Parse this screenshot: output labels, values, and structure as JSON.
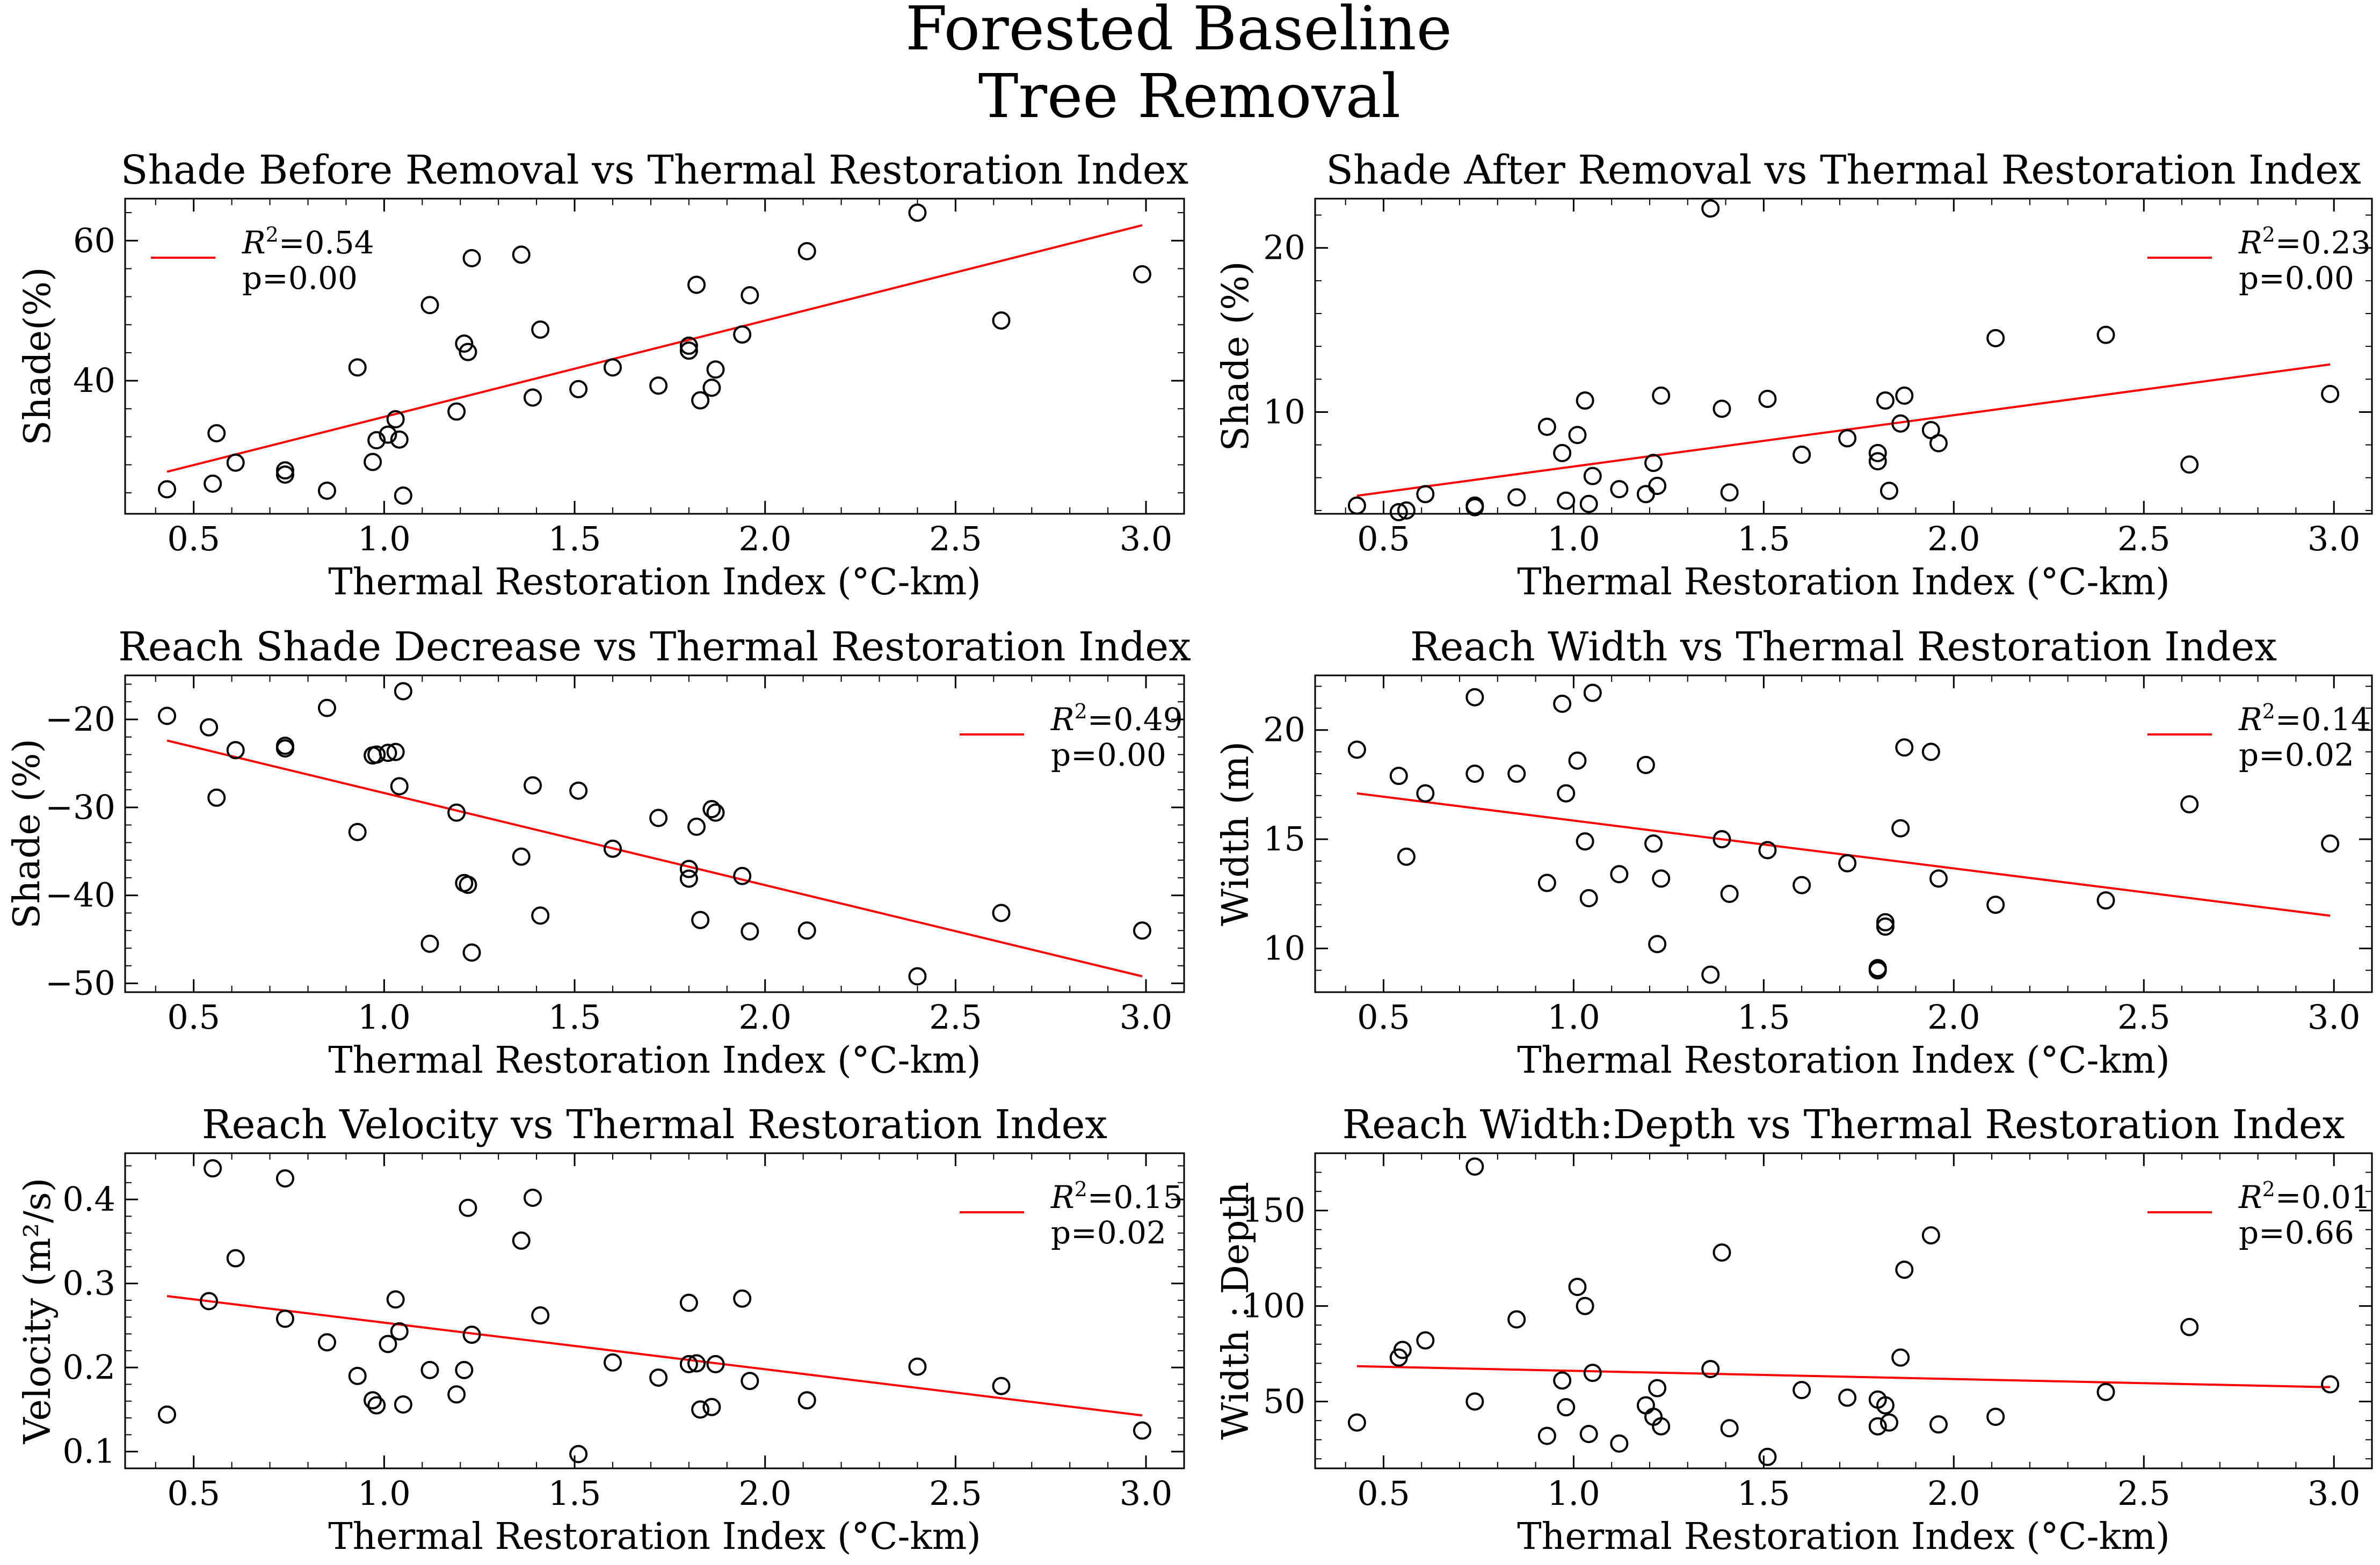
{
  "figure": {
    "title_lines": [
      "Forested Baseline",
      "Tree Removal"
    ]
  },
  "colors": {
    "fit_line": "#ff0000",
    "marker": "#000000",
    "axes": "#000000",
    "background": "#ffffff"
  },
  "chart_data": [
    {
      "type": "scatter",
      "title": "Shade Before Removal vs Thermal Restoration Index",
      "xlabel": "Thermal Restoration Index (°C-km)",
      "ylabel": "Shade(%)",
      "xlim": [
        0.32,
        3.1
      ],
      "ylim": [
        21,
        66
      ],
      "xticks": [
        0.5,
        1.0,
        1.5,
        2.0,
        2.5,
        3.0
      ],
      "xtick_labels": [
        "0.5",
        "1.0",
        "1.5",
        "2.0",
        "2.5",
        "3.0"
      ],
      "yticks": [
        40,
        60
      ],
      "ytick_labels": [
        "40",
        "60"
      ],
      "legend": {
        "r2_label": "R",
        "r2_value": "=0.54",
        "p": "p=0.00",
        "position": "top-left"
      },
      "fit": {
        "x": [
          0.43,
          2.99
        ],
        "y": [
          27.0,
          62.2
        ]
      },
      "points": [
        [
          0.43,
          24.5
        ],
        [
          0.55,
          25.3
        ],
        [
          0.56,
          32.5
        ],
        [
          0.61,
          28.3
        ],
        [
          0.74,
          26.6
        ],
        [
          0.74,
          27.2
        ],
        [
          0.85,
          24.3
        ],
        [
          0.93,
          41.9
        ],
        [
          0.97,
          28.4
        ],
        [
          0.98,
          31.5
        ],
        [
          1.01,
          32.3
        ],
        [
          1.03,
          34.5
        ],
        [
          1.04,
          31.6
        ],
        [
          1.05,
          23.6
        ],
        [
          1.12,
          50.8
        ],
        [
          1.19,
          35.6
        ],
        [
          1.21,
          45.3
        ],
        [
          1.22,
          44.1
        ],
        [
          1.23,
          57.5
        ],
        [
          1.36,
          58.0
        ],
        [
          1.39,
          37.6
        ],
        [
          1.41,
          47.3
        ],
        [
          1.51,
          38.8
        ],
        [
          1.6,
          41.9
        ],
        [
          1.72,
          39.3
        ],
        [
          1.8,
          45.0
        ],
        [
          1.8,
          44.3
        ],
        [
          1.82,
          53.7
        ],
        [
          1.83,
          37.2
        ],
        [
          1.86,
          39.0
        ],
        [
          1.87,
          41.6
        ],
        [
          1.94,
          46.6
        ],
        [
          1.96,
          52.2
        ],
        [
          2.11,
          58.5
        ],
        [
          2.4,
          64.0
        ],
        [
          2.62,
          48.6
        ],
        [
          2.99,
          55.2
        ]
      ]
    },
    {
      "type": "scatter",
      "title": "Shade After Removal  vs Thermal Restoration Index",
      "xlabel": "Thermal Restoration Index (°C-km)",
      "ylabel": "Shade (%)",
      "xlim": [
        0.32,
        3.1
      ],
      "ylim": [
        3.8,
        23
      ],
      "xticks": [
        0.5,
        1.0,
        1.5,
        2.0,
        2.5,
        3.0
      ],
      "xtick_labels": [
        "0.5",
        "1.0",
        "1.5",
        "2.0",
        "2.5",
        "3.0"
      ],
      "yticks": [
        10,
        20
      ],
      "ytick_labels": [
        "10",
        "20"
      ],
      "legend": {
        "r2_label": "R",
        "r2_value": "=0.23",
        "p": "p=0.00",
        "position": "top-right"
      },
      "fit": {
        "x": [
          0.43,
          2.99
        ],
        "y": [
          4.9,
          12.9
        ]
      },
      "points": [
        [
          0.43,
          4.3
        ],
        [
          0.54,
          3.9
        ],
        [
          0.56,
          4.0
        ],
        [
          0.61,
          5.0
        ],
        [
          0.74,
          4.2
        ],
        [
          0.74,
          4.3
        ],
        [
          0.85,
          4.8
        ],
        [
          0.93,
          9.1
        ],
        [
          0.97,
          7.5
        ],
        [
          0.98,
          4.6
        ],
        [
          1.01,
          8.6
        ],
        [
          1.03,
          10.7
        ],
        [
          1.04,
          4.4
        ],
        [
          1.05,
          6.1
        ],
        [
          1.12,
          5.3
        ],
        [
          1.19,
          5.0
        ],
        [
          1.21,
          6.9
        ],
        [
          1.22,
          5.5
        ],
        [
          1.23,
          11.0
        ],
        [
          1.36,
          22.4
        ],
        [
          1.39,
          10.2
        ],
        [
          1.41,
          5.1
        ],
        [
          1.51,
          10.8
        ],
        [
          1.6,
          7.4
        ],
        [
          1.72,
          8.4
        ],
        [
          1.8,
          7.5
        ],
        [
          1.8,
          7.0
        ],
        [
          1.82,
          10.7
        ],
        [
          1.83,
          5.2
        ],
        [
          1.86,
          9.3
        ],
        [
          1.87,
          11.0
        ],
        [
          1.94,
          8.9
        ],
        [
          1.96,
          8.1
        ],
        [
          2.11,
          14.5
        ],
        [
          2.4,
          14.7
        ],
        [
          2.62,
          6.8
        ],
        [
          2.99,
          11.1
        ]
      ]
    },
    {
      "type": "scatter",
      "title": "Reach Shade Decrease vs Thermal Restoration Index",
      "xlabel": "Thermal Restoration Index (°C-km)",
      "ylabel": "Shade (%)",
      "xlim": [
        0.32,
        3.1
      ],
      "ylim": [
        -51,
        -15
      ],
      "xticks": [
        0.5,
        1.0,
        1.5,
        2.0,
        2.5,
        3.0
      ],
      "xtick_labels": [
        "0.5",
        "1.0",
        "1.5",
        "2.0",
        "2.5",
        "3.0"
      ],
      "yticks": [
        -20,
        -30,
        -40,
        -50
      ],
      "ytick_labels": [
        "−20",
        "−30",
        "−40",
        "−50"
      ],
      "legend": {
        "r2_label": "R",
        "r2_value": "=0.49",
        "p": "p=0.00",
        "position": "top-right"
      },
      "fit": {
        "x": [
          0.43,
          2.99
        ],
        "y": [
          -22.4,
          -49.2
        ]
      },
      "points": [
        [
          0.43,
          -19.6
        ],
        [
          0.54,
          -20.9
        ],
        [
          0.56,
          -28.9
        ],
        [
          0.61,
          -23.5
        ],
        [
          0.74,
          -23.0
        ],
        [
          0.74,
          -23.3
        ],
        [
          0.85,
          -18.7
        ],
        [
          0.93,
          -32.8
        ],
        [
          0.97,
          -24.1
        ],
        [
          0.98,
          -24.0
        ],
        [
          1.01,
          -23.8
        ],
        [
          1.03,
          -23.7
        ],
        [
          1.04,
          -27.6
        ],
        [
          1.05,
          -16.8
        ],
        [
          1.12,
          -45.5
        ],
        [
          1.19,
          -30.6
        ],
        [
          1.21,
          -38.6
        ],
        [
          1.22,
          -38.8
        ],
        [
          1.23,
          -46.5
        ],
        [
          1.36,
          -35.6
        ],
        [
          1.39,
          -27.5
        ],
        [
          1.41,
          -42.3
        ],
        [
          1.51,
          -28.1
        ],
        [
          1.6,
          -34.7
        ],
        [
          1.72,
          -31.2
        ],
        [
          1.8,
          -37.0
        ],
        [
          1.8,
          -38.1
        ],
        [
          1.82,
          -32.2
        ],
        [
          1.83,
          -42.8
        ],
        [
          1.86,
          -30.2
        ],
        [
          1.87,
          -30.6
        ],
        [
          1.94,
          -37.8
        ],
        [
          1.96,
          -44.1
        ],
        [
          2.11,
          -44.0
        ],
        [
          2.4,
          -49.2
        ],
        [
          2.62,
          -42.0
        ],
        [
          2.99,
          -44.0
        ]
      ]
    },
    {
      "type": "scatter",
      "title": "Reach Width vs Thermal Restoration Index",
      "xlabel": "Thermal Restoration Index (°C-km)",
      "ylabel": "Width (m)",
      "xlim": [
        0.32,
        3.1
      ],
      "ylim": [
        8.0,
        22.5
      ],
      "xticks": [
        0.5,
        1.0,
        1.5,
        2.0,
        2.5,
        3.0
      ],
      "xtick_labels": [
        "0.5",
        "1.0",
        "1.5",
        "2.0",
        "2.5",
        "3.0"
      ],
      "yticks": [
        10,
        15,
        20
      ],
      "ytick_labels": [
        "10",
        "15",
        "20"
      ],
      "legend": {
        "r2_label": "R",
        "r2_value": "=0.14",
        "p": "p=0.02",
        "position": "top-right"
      },
      "fit": {
        "x": [
          0.43,
          2.99
        ],
        "y": [
          17.1,
          11.5
        ]
      },
      "points": [
        [
          0.43,
          19.1
        ],
        [
          0.54,
          17.9
        ],
        [
          0.56,
          14.2
        ],
        [
          0.61,
          17.1
        ],
        [
          0.74,
          21.5
        ],
        [
          0.74,
          18.0
        ],
        [
          0.85,
          18.0
        ],
        [
          0.93,
          13.0
        ],
        [
          0.97,
          21.2
        ],
        [
          0.98,
          17.1
        ],
        [
          1.01,
          18.6
        ],
        [
          1.03,
          14.9
        ],
        [
          1.04,
          12.3
        ],
        [
          1.05,
          21.7
        ],
        [
          1.12,
          13.4
        ],
        [
          1.19,
          18.4
        ],
        [
          1.21,
          14.8
        ],
        [
          1.22,
          10.2
        ],
        [
          1.23,
          13.2
        ],
        [
          1.36,
          8.8
        ],
        [
          1.39,
          15.0
        ],
        [
          1.41,
          12.5
        ],
        [
          1.51,
          14.5
        ],
        [
          1.6,
          12.9
        ],
        [
          1.72,
          13.9
        ],
        [
          1.8,
          9.0
        ],
        [
          1.8,
          9.1
        ],
        [
          1.82,
          11.2
        ],
        [
          1.82,
          11.0
        ],
        [
          1.86,
          15.5
        ],
        [
          1.87,
          19.2
        ],
        [
          1.94,
          19.0
        ],
        [
          1.96,
          13.2
        ],
        [
          2.11,
          12.0
        ],
        [
          2.4,
          12.2
        ],
        [
          2.62,
          16.6
        ],
        [
          2.99,
          14.8
        ]
      ]
    },
    {
      "type": "scatter",
      "title": "Reach Velocity vs Thermal Restoration Index",
      "xlabel": "Thermal Restoration Index (°C-km)",
      "ylabel": "Velocity (m²/s)",
      "xlim": [
        0.32,
        3.1
      ],
      "ylim": [
        0.08,
        0.455
      ],
      "xticks": [
        0.5,
        1.0,
        1.5,
        2.0,
        2.5,
        3.0
      ],
      "xtick_labels": [
        "0.5",
        "1.0",
        "1.5",
        "2.0",
        "2.5",
        "3.0"
      ],
      "yticks": [
        0.1,
        0.2,
        0.3,
        0.4
      ],
      "ytick_labels": [
        "0.1",
        "0.2",
        "0.3",
        "0.4"
      ],
      "legend": {
        "r2_label": "R",
        "r2_value": "=0.15",
        "p": "p=0.02",
        "position": "top-right"
      },
      "fit": {
        "x": [
          0.43,
          2.99
        ],
        "y": [
          0.285,
          0.143
        ]
      },
      "points": [
        [
          0.43,
          0.144
        ],
        [
          0.54,
          0.279
        ],
        [
          0.55,
          0.437
        ],
        [
          0.61,
          0.33
        ],
        [
          0.74,
          0.425
        ],
        [
          0.74,
          0.258
        ],
        [
          0.85,
          0.23
        ],
        [
          0.93,
          0.19
        ],
        [
          0.97,
          0.161
        ],
        [
          0.98,
          0.155
        ],
        [
          1.01,
          0.228
        ],
        [
          1.03,
          0.281
        ],
        [
          1.04,
          0.243
        ],
        [
          1.05,
          0.156
        ],
        [
          1.12,
          0.197
        ],
        [
          1.19,
          0.168
        ],
        [
          1.21,
          0.197
        ],
        [
          1.22,
          0.39
        ],
        [
          1.23,
          0.239
        ],
        [
          1.36,
          0.351
        ],
        [
          1.39,
          0.402
        ],
        [
          1.41,
          0.262
        ],
        [
          1.51,
          0.097
        ],
        [
          1.6,
          0.206
        ],
        [
          1.72,
          0.188
        ],
        [
          1.8,
          0.277
        ],
        [
          1.8,
          0.204
        ],
        [
          1.82,
          0.205
        ],
        [
          1.83,
          0.15
        ],
        [
          1.86,
          0.153
        ],
        [
          1.87,
          0.204
        ],
        [
          1.94,
          0.282
        ],
        [
          1.96,
          0.184
        ],
        [
          2.11,
          0.161
        ],
        [
          2.4,
          0.201
        ],
        [
          2.62,
          0.178
        ],
        [
          2.99,
          0.125
        ]
      ]
    },
    {
      "type": "scatter",
      "title": "Reach Width:Depth vs Thermal Restoration Index",
      "xlabel": "Thermal Restoration Index (°C-km)",
      "ylabel": "Width : Depth",
      "xlim": [
        0.32,
        3.1
      ],
      "ylim": [
        15,
        180
      ],
      "xticks": [
        0.5,
        1.0,
        1.5,
        2.0,
        2.5,
        3.0
      ],
      "xtick_labels": [
        "0.5",
        "1.0",
        "1.5",
        "2.0",
        "2.5",
        "3.0"
      ],
      "yticks": [
        50,
        100,
        150
      ],
      "ytick_labels": [
        "50",
        "100",
        "150"
      ],
      "legend": {
        "r2_label": "R",
        "r2_value": "=0.01",
        "p": "p=0.66",
        "position": "top-right"
      },
      "fit": {
        "x": [
          0.43,
          2.99
        ],
        "y": [
          68.5,
          57.5
        ]
      },
      "points": [
        [
          0.43,
          39
        ],
        [
          0.54,
          73
        ],
        [
          0.55,
          77
        ],
        [
          0.61,
          82
        ],
        [
          0.74,
          173
        ],
        [
          0.74,
          50
        ],
        [
          0.85,
          93
        ],
        [
          0.93,
          32
        ],
        [
          0.97,
          61
        ],
        [
          0.98,
          47
        ],
        [
          1.01,
          110
        ],
        [
          1.03,
          100
        ],
        [
          1.04,
          33
        ],
        [
          1.05,
          65
        ],
        [
          1.12,
          28
        ],
        [
          1.19,
          48
        ],
        [
          1.21,
          42
        ],
        [
          1.22,
          57
        ],
        [
          1.23,
          37
        ],
        [
          1.36,
          67
        ],
        [
          1.39,
          128
        ],
        [
          1.41,
          36
        ],
        [
          1.51,
          21
        ],
        [
          1.6,
          56
        ],
        [
          1.72,
          52
        ],
        [
          1.8,
          51
        ],
        [
          1.8,
          37
        ],
        [
          1.82,
          48
        ],
        [
          1.83,
          39
        ],
        [
          1.86,
          73
        ],
        [
          1.87,
          119
        ],
        [
          1.94,
          137
        ],
        [
          1.96,
          38
        ],
        [
          2.11,
          42
        ],
        [
          2.4,
          55
        ],
        [
          2.62,
          89
        ],
        [
          2.99,
          59
        ]
      ]
    }
  ]
}
